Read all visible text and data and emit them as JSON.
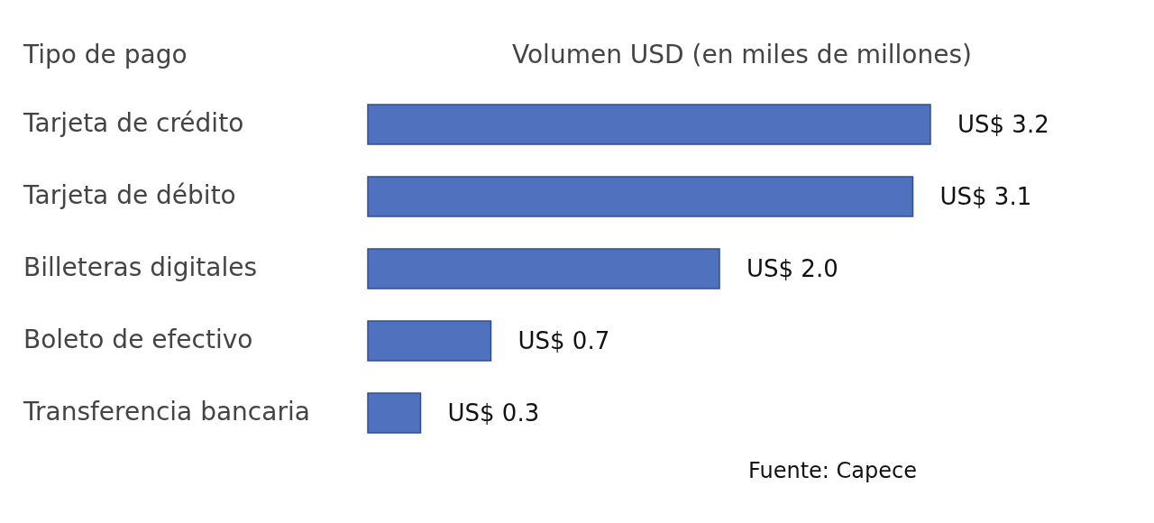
{
  "chart_data": {
    "type": "bar",
    "orientation": "horizontal",
    "ylabel": "Tipo de pago",
    "xlabel": "Volumen USD (en miles de millones)",
    "categories": [
      "Tarjeta de crédito",
      "Tarjeta de débito",
      "Billeteras digitales",
      "Boleto de efectivo",
      "Transferencia bancaria"
    ],
    "values": [
      3.2,
      3.1,
      2.0,
      0.7,
      0.3
    ],
    "value_labels": [
      "US$ 3.2",
      "US$ 3.1",
      "US$ 2.0",
      "US$ 0.7",
      "US$ 0.3"
    ],
    "color": "#4f71be",
    "annotations": [
      "Fuente: Capece"
    ]
  }
}
